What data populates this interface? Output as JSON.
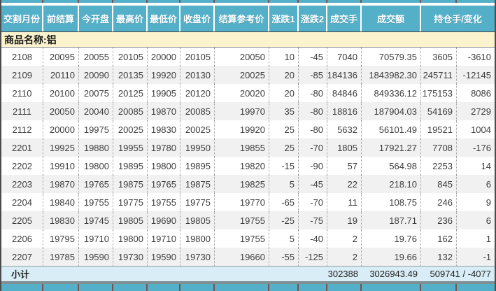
{
  "colors": {
    "header_bg": "#54b0c9",
    "product_bg": "#fbf3cd",
    "subtotal_bg": "#d9edf6",
    "row_alt_bg": "#f1f1f1",
    "header_text": "#ffffff"
  },
  "table": {
    "columns": [
      "交割月份",
      "前结算",
      "今开盘",
      "最高价",
      "最低价",
      "收盘价",
      "结算参考价",
      "涨跌1",
      "涨跌2",
      "成交手",
      "成交额",
      "持仓手/变化"
    ],
    "product_label": "商品名称:铝",
    "rows": [
      [
        "2108",
        "20095",
        "20055",
        "20105",
        "20000",
        "20105",
        "20050",
        "10",
        "-45",
        "7040",
        "70579.35",
        "3605",
        "-3610"
      ],
      [
        "2109",
        "20110",
        "20090",
        "20135",
        "19920",
        "20130",
        "20025",
        "20",
        "-85",
        "184136",
        "1843982.30",
        "245711",
        "-12145"
      ],
      [
        "2110",
        "20100",
        "20075",
        "20125",
        "19905",
        "20120",
        "20020",
        "20",
        "-80",
        "84846",
        "849336.12",
        "175153",
        "8086"
      ],
      [
        "2111",
        "20050",
        "20040",
        "20085",
        "19870",
        "20085",
        "19970",
        "35",
        "-80",
        "18816",
        "187904.03",
        "54169",
        "2729"
      ],
      [
        "2112",
        "20000",
        "19975",
        "20025",
        "19830",
        "20025",
        "19920",
        "25",
        "-80",
        "5632",
        "56101.49",
        "19521",
        "1004"
      ],
      [
        "2201",
        "19925",
        "19880",
        "19955",
        "19780",
        "19950",
        "19855",
        "25",
        "-70",
        "1805",
        "17921.27",
        "7708",
        "-176"
      ],
      [
        "2202",
        "19910",
        "19800",
        "19895",
        "19800",
        "19895",
        "19820",
        "-15",
        "-90",
        "57",
        "564.98",
        "2253",
        "14"
      ],
      [
        "2203",
        "19870",
        "19765",
        "19875",
        "19765",
        "19875",
        "19825",
        "5",
        "-45",
        "22",
        "218.10",
        "845",
        "6"
      ],
      [
        "2204",
        "19840",
        "19755",
        "19775",
        "19755",
        "19775",
        "19770",
        "-65",
        "-70",
        "11",
        "108.75",
        "246",
        "9"
      ],
      [
        "2205",
        "19830",
        "19745",
        "19805",
        "19690",
        "19805",
        "19755",
        "-25",
        "-75",
        "19",
        "187.71",
        "236",
        "6"
      ],
      [
        "2206",
        "19795",
        "19710",
        "19800",
        "19710",
        "19800",
        "19755",
        "5",
        "-40",
        "2",
        "19.76",
        "162",
        "1"
      ],
      [
        "2207",
        "19785",
        "19590",
        "19730",
        "19590",
        "19730",
        "19660",
        "-55",
        "-125",
        "2",
        "19.66",
        "132",
        "-1"
      ]
    ],
    "subtotal": {
      "label": "小计",
      "volume": "302388",
      "turnover": "3026943.49",
      "position": "509741 / -4077"
    }
  }
}
